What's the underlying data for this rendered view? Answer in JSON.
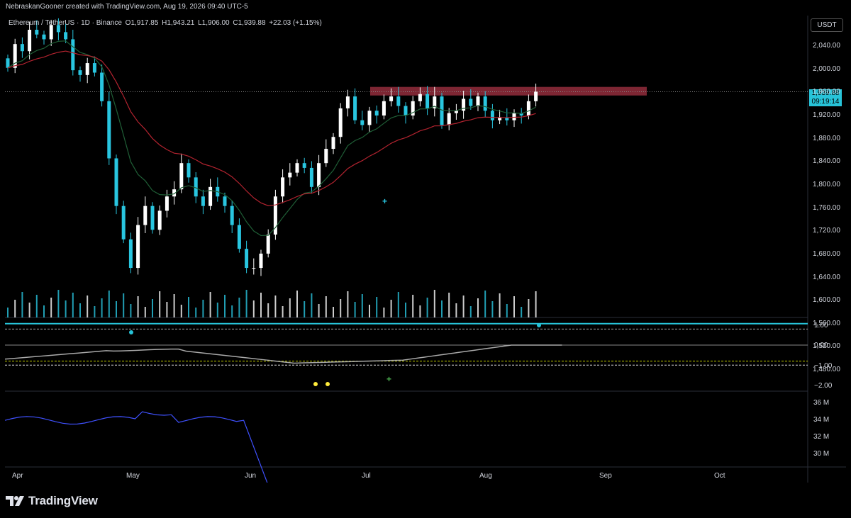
{
  "caption": "NebraskanGooner created with TradingView.com, Aug 19, 2026 09:40 UTC-5",
  "symbol": {
    "name": "Ethereum / TetherUS · 1D · Binance",
    "open": "O1,917.85",
    "high": "H1,943.21",
    "low": "L1,906.00",
    "close": "C1,939.88",
    "change": "+22.03 (+1.15%)"
  },
  "currency": "USDT",
  "last_price": "1,939.88",
  "countdown": "09:19:14",
  "price_axis": [
    "2,040.00",
    "2,000.00",
    "1,960.00",
    "1,920.00",
    "1,880.00",
    "1,840.00",
    "1,800.00",
    "1,760.00",
    "1,720.00",
    "1,680.00",
    "1,640.00",
    "1,600.00",
    "1,560.00",
    "1,520.00",
    "1,480.00"
  ],
  "osc_axis": [
    "1.00",
    "0.00",
    "−1.00",
    "−2.00"
  ],
  "vol_axis": [
    "36 M",
    "34 M",
    "32 M",
    "30 M"
  ],
  "time_axis": [
    "Apr",
    "May",
    "Jun",
    "Jul",
    "Aug",
    "Sep",
    "Oct"
  ],
  "logo_text": "TradingView",
  "colors": {
    "up_candle": "#ffffff",
    "down_candle": "#29c6e0",
    "resistance_zone": "#8b2a38",
    "ema_fast": "#1f5e36",
    "ema_slow": "#b2232f",
    "osc_line": "#a9a9a9",
    "obv_line": "#3f51ff",
    "accent": "#27c3d8"
  },
  "icons": [
    "tradingview-logo-icon",
    "plus-signal-icon",
    "dot-signal-icon"
  ],
  "chart_data": {
    "type": "candlestick",
    "interval": "1D",
    "title": "Ethereum / TetherUS · 1D · Binance",
    "ylim": [
      1460,
      2070
    ],
    "resistance_zone": [
      1932,
      1950
    ],
    "closes": [
      1990,
      2040,
      2025,
      2070,
      2060,
      2050,
      2080,
      2065,
      2050,
      1985,
      1975,
      2000,
      1980,
      1920,
      1800,
      1700,
      1630,
      1570,
      1660,
      1700,
      1650,
      1690,
      1720,
      1735,
      1790,
      1760,
      1720,
      1700,
      1740,
      1720,
      1700,
      1660,
      1610,
      1570,
      1570,
      1600,
      1640,
      1720,
      1760,
      1770,
      1790,
      1780,
      1740,
      1790,
      1820,
      1845,
      1905,
      1930,
      1880,
      1870,
      1900,
      1890,
      1920,
      1930,
      1910,
      1890,
      1920,
      1935,
      1905,
      1930,
      1870,
      1895,
      1900,
      1925,
      1910,
      1930,
      1900,
      1880,
      1885,
      1880,
      1895,
      1890,
      1920,
      1940
    ],
    "ema_fast_desc": "approx 9-period EMA",
    "ema_slow_desc": "approx 21-period EMA",
    "oscillator_range": [
      -2,
      1
    ],
    "obv_range": [
      29,
      37
    ]
  }
}
